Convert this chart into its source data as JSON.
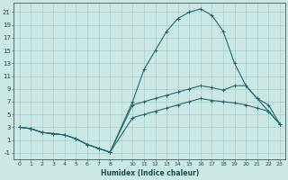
{
  "xlabel": "Humidex (Indice chaleur)",
  "background_color": "#cce8e4",
  "grid_color": "#aacccc",
  "line_color": "#1a6b6b",
  "xlim": [
    -0.5,
    23.5
  ],
  "ylim": [
    -2,
    22.5
  ],
  "xticks": [
    0,
    1,
    2,
    3,
    4,
    5,
    6,
    7,
    8,
    10,
    11,
    12,
    13,
    14,
    15,
    16,
    17,
    18,
    19,
    20,
    21,
    22,
    23
  ],
  "yticks": [
    -1,
    1,
    3,
    5,
    7,
    9,
    11,
    13,
    15,
    17,
    19,
    21
  ],
  "line1_x": [
    0,
    1,
    2,
    3,
    4,
    5,
    6,
    7,
    8,
    10,
    11,
    12,
    13,
    14,
    15,
    16,
    17,
    18,
    19,
    20,
    21,
    22,
    23
  ],
  "line1_y": [
    3,
    2.8,
    2.2,
    2.0,
    1.8,
    1.2,
    0.3,
    -0.3,
    -0.9,
    7,
    12,
    15,
    18,
    20,
    21,
    21.5,
    20.5,
    18,
    13,
    9.5,
    7.5,
    5.5,
    3.5
  ],
  "line2_x": [
    0,
    1,
    2,
    3,
    4,
    5,
    6,
    7,
    8,
    10,
    11,
    12,
    13,
    14,
    15,
    16,
    17,
    18,
    19,
    20,
    21,
    22,
    23
  ],
  "line2_y": [
    3,
    2.8,
    2.2,
    2.0,
    1.8,
    1.2,
    0.3,
    -0.3,
    -0.9,
    6.5,
    7.0,
    7.5,
    8.0,
    8.5,
    9.0,
    9.5,
    9.2,
    8.8,
    9.5,
    9.5,
    7.5,
    6.5,
    3.5
  ],
  "line3_x": [
    0,
    1,
    2,
    3,
    4,
    5,
    6,
    7,
    8,
    10,
    11,
    12,
    13,
    14,
    15,
    16,
    17,
    18,
    19,
    20,
    21,
    22,
    23
  ],
  "line3_y": [
    3,
    2.8,
    2.2,
    2.0,
    1.8,
    1.2,
    0.3,
    -0.3,
    -0.9,
    4.5,
    5.0,
    5.5,
    6.0,
    6.5,
    7.0,
    7.5,
    7.2,
    7.0,
    6.8,
    6.5,
    6.0,
    5.5,
    3.5
  ]
}
